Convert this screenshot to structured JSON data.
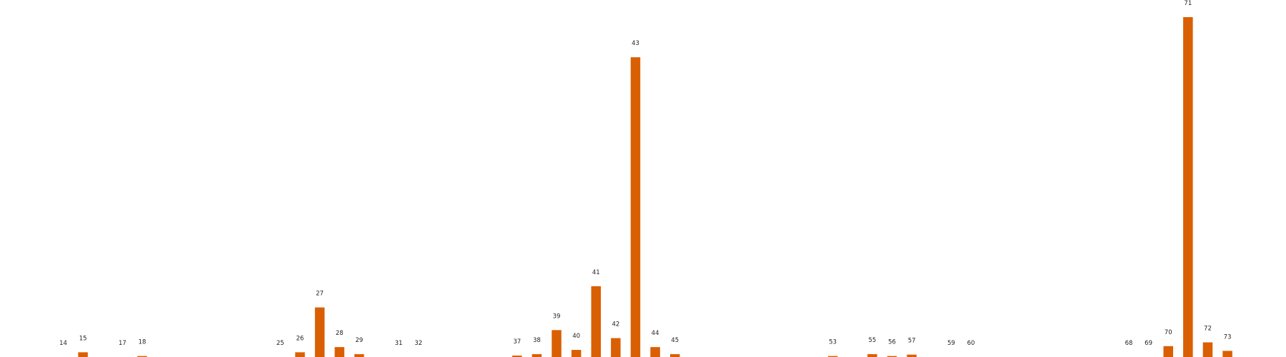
{
  "chart_data": {
    "type": "bar",
    "title": "",
    "xlabel": "",
    "ylabel": "",
    "grid": false,
    "ylim": [
      0,
      72
    ],
    "color": "#d95f02",
    "bars": [
      {
        "label": "14",
        "value": 0
      },
      {
        "label": "15",
        "value": 1.0
      },
      {
        "label": "17",
        "value": 0
      },
      {
        "label": "18",
        "value": 0.2
      },
      {
        "label": "25",
        "value": 0
      },
      {
        "label": "26",
        "value": 1.0
      },
      {
        "label": "27",
        "value": 10.5
      },
      {
        "label": "28",
        "value": 2.1
      },
      {
        "label": "29",
        "value": 0.6
      },
      {
        "label": "31",
        "value": 0
      },
      {
        "label": "32",
        "value": 0
      },
      {
        "label": "37",
        "value": 0.3
      },
      {
        "label": "38",
        "value": 0.6
      },
      {
        "label": "39",
        "value": 5.7
      },
      {
        "label": "40",
        "value": 1.5
      },
      {
        "label": "41",
        "value": 15.0
      },
      {
        "label": "42",
        "value": 4.0
      },
      {
        "label": "43",
        "value": 63.5
      },
      {
        "label": "44",
        "value": 2.1
      },
      {
        "label": "45",
        "value": 0.6
      },
      {
        "label": "53",
        "value": 0.2
      },
      {
        "label": "55",
        "value": 0.6
      },
      {
        "label": "56",
        "value": 0.2
      },
      {
        "label": "57",
        "value": 0.5
      },
      {
        "label": "59",
        "value": 0
      },
      {
        "label": "60",
        "value": 0
      },
      {
        "label": "68",
        "value": 0
      },
      {
        "label": "69",
        "value": 0
      },
      {
        "label": "70",
        "value": 2.3
      },
      {
        "label": "71",
        "value": 72.0
      },
      {
        "label": "72",
        "value": 3.1
      },
      {
        "label": "73",
        "value": 1.3
      }
    ]
  }
}
